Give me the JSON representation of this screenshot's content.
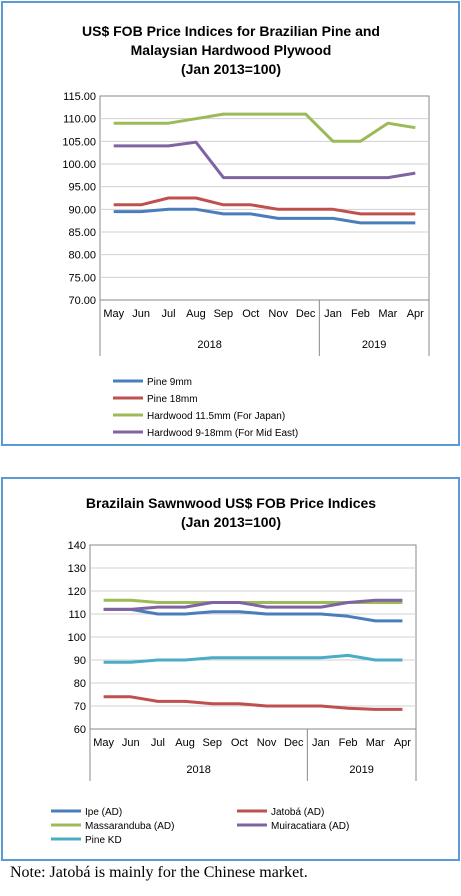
{
  "charts": [
    {
      "type": "line",
      "title_lines": [
        "US$ FOB Price Indices for Brazilian Pine and",
        "Malaysian Hardwood Plywood",
        "(Jan 2013=100)"
      ],
      "ylim": [
        70,
        115
      ],
      "ytick_values": [
        70,
        75,
        80,
        85,
        90,
        95,
        100,
        105,
        110,
        115
      ],
      "ytick_labels": [
        "70.00",
        "75.00",
        "80.00",
        "85.00",
        "90.00",
        "95.00",
        "100.00",
        "105.00",
        "110.00",
        "115.00"
      ],
      "categories": [
        "May",
        "Jun",
        "Jul",
        "Aug",
        "Sep",
        "Oct",
        "Nov",
        "Dec",
        "Jan",
        "Feb",
        "Mar",
        "Apr"
      ],
      "year_groups": [
        {
          "label": "2018",
          "count": 8
        },
        {
          "label": "2019",
          "count": 4
        }
      ],
      "series": [
        {
          "name": "Pine 9mm",
          "color": "#4a7ebb",
          "values": [
            89.5,
            89.5,
            90,
            90,
            89,
            89,
            88,
            88,
            88,
            87,
            87,
            87
          ]
        },
        {
          "name": "Pine 18mm",
          "color": "#c0504d",
          "values": [
            91,
            91,
            92.5,
            92.5,
            91,
            91,
            90,
            90,
            90,
            89,
            89,
            89
          ]
        },
        {
          "name": "Hardwood 11.5mm (For Japan)",
          "color": "#9bbb59",
          "values": [
            109,
            109,
            109,
            110,
            111,
            111,
            111,
            111,
            105,
            105,
            109,
            108
          ]
        },
        {
          "name": "Hardwood 9-18mm (For Mid East)",
          "color": "#8064a2",
          "values": [
            104,
            104,
            104,
            104.8,
            97,
            97,
            97,
            97,
            97,
            97,
            97,
            98
          ]
        }
      ]
    },
    {
      "type": "line",
      "title_lines": [
        "Brazilain Sawnwood US$ FOB Price Indices",
        "(Jan 2013=100)"
      ],
      "ylim": [
        60,
        140
      ],
      "ytick_values": [
        60,
        70,
        80,
        90,
        100,
        110,
        120,
        130,
        140
      ],
      "ytick_labels": [
        "60",
        "70",
        "80",
        "90",
        "100",
        "110",
        "120",
        "130",
        "140"
      ],
      "categories": [
        "May",
        "Jun",
        "Jul",
        "Aug",
        "Sep",
        "Oct",
        "Nov",
        "Dec",
        "Jan",
        "Feb",
        "Mar",
        "Apr"
      ],
      "year_groups": [
        {
          "label": "2018",
          "count": 8
        },
        {
          "label": "2019",
          "count": 4
        }
      ],
      "series": [
        {
          "name": "Ipe (AD)",
          "color": "#4a7ebb",
          "values": [
            112,
            112,
            110,
            110,
            111,
            111,
            110,
            110,
            110,
            109,
            107,
            107
          ]
        },
        {
          "name": "Jatobá (AD)",
          "color": "#c0504d",
          "values": [
            74,
            74,
            72,
            72,
            71,
            71,
            70,
            70,
            70,
            69,
            68.5,
            68.5
          ]
        },
        {
          "name": "Massaranduba (AD)",
          "color": "#9bbb59",
          "values": [
            116,
            116,
            115,
            115,
            115,
            115,
            115,
            115,
            115,
            115,
            115,
            115
          ]
        },
        {
          "name": "Muiracatiara (AD)",
          "color": "#8064a2",
          "values": [
            112,
            112,
            113,
            113,
            115,
            115,
            113,
            113,
            113,
            115,
            116,
            116
          ]
        },
        {
          "name": "Pine KD",
          "color": "#4bacc6",
          "values": [
            89,
            89,
            90,
            90,
            91,
            91,
            91,
            91,
            91,
            92,
            90,
            90
          ]
        }
      ]
    }
  ],
  "note": "Note: Jatobá is mainly for the Chinese market."
}
